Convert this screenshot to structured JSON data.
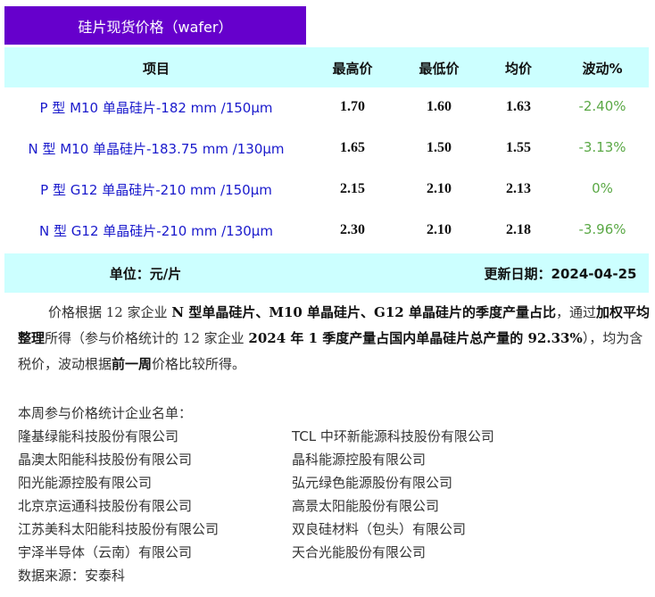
{
  "title": "硅片现货价格（wafer）",
  "header": {
    "item": "项目",
    "max": "最高价",
    "min": "最低价",
    "avg": "均价",
    "change": "波动%"
  },
  "rows": [
    {
      "name": "P 型 M10 单晶硅片-182 mm /150μm",
      "max": "1.70",
      "min": "1.60",
      "avg": "1.63",
      "change": "-2.40%"
    },
    {
      "name": "N 型 M10 单晶硅片-183.75 mm /130μm",
      "max": "1.65",
      "min": "1.50",
      "avg": "1.55",
      "change": "-3.13%"
    },
    {
      "name": "P 型 G12 单晶硅片-210 mm /150μm",
      "max": "2.15",
      "min": "2.10",
      "avg": "2.13",
      "change": "0%"
    },
    {
      "name": "N 型 G12 单晶硅片-210 mm /130μm",
      "max": "2.30",
      "min": "2.10",
      "avg": "2.18",
      "change": "-3.96%"
    }
  ],
  "footer": {
    "unit": "单位：元/片",
    "updated": "更新日期：2024-04-25"
  },
  "paragraph": [
    {
      "t": "价格根据 12 家企业 ",
      "b": false
    },
    {
      "t": "N 型单晶硅片、M10 单晶硅片、G12 单晶硅片的季度产量占比",
      "b": true
    },
    {
      "t": "，通过",
      "b": false
    },
    {
      "t": "加权平均整理",
      "b": true
    },
    {
      "t": "所得（参与价格统计的 12 家企业 ",
      "b": false
    },
    {
      "t": "2024 年 1 季度产量占国内单晶硅片总产量的 92.33%",
      "b": true
    },
    {
      "t": "），均为含税价，波动根据",
      "b": false
    },
    {
      "t": "前一周",
      "b": true
    },
    {
      "t": "价格比较所得。",
      "b": false
    }
  ],
  "companies_heading": "本周参与价格统计企业名单：",
  "companies": [
    [
      "隆基绿能科技股份有限公司",
      "TCL 中环新能源科技股份有限公司"
    ],
    [
      "晶澳太阳能科技股份有限公司",
      "晶科能源控股有限公司"
    ],
    [
      "阳光能源控股有限公司",
      "弘元绿色能源股份有限公司"
    ],
    [
      "北京京运通科技股份有限公司",
      "高景太阳能股份有限公司"
    ],
    [
      "江苏美科太阳能科技股份有限公司",
      "双良硅材料（包头）有限公司"
    ],
    [
      "宇泽半导体（云南）有限公司",
      "天合光能股份有限公司"
    ]
  ],
  "source": "数据来源：安泰科",
  "colors": {
    "title_bg": "#6600cc",
    "band_bg": "#ccffff",
    "name_text": "#1a1acc",
    "change_text": "#5aa845"
  }
}
